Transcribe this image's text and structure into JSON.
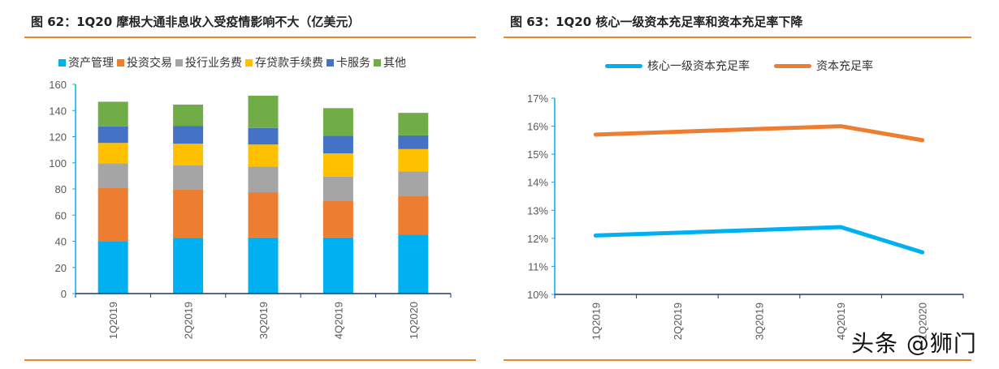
{
  "watermark": "头条 @狮门",
  "chart_data": [
    {
      "type": "bar",
      "stacked": true,
      "title": "图 62：1Q20 摩根大通非息收入受疫情影响不大（亿美元）",
      "categories": [
        "1Q2019",
        "2Q2019",
        "3Q2019",
        "4Q2019",
        "1Q2020"
      ],
      "ylim": [
        0,
        160
      ],
      "yticks": [
        0,
        20,
        40,
        60,
        80,
        100,
        120,
        140,
        160
      ],
      "grid": false,
      "legend": "top",
      "series": [
        {
          "name": "资产管理",
          "color": "#00b0f0",
          "values": [
            40.2,
            42.5,
            42.9,
            42.9,
            45.2
          ]
        },
        {
          "name": "投资交易",
          "color": "#ed7d31",
          "values": [
            40.8,
            37.3,
            34.6,
            27.8,
            29.6
          ]
        },
        {
          "name": "投行业务费",
          "color": "#a5a5a5",
          "values": [
            18.5,
            18.4,
            19.7,
            18.6,
            18.7
          ]
        },
        {
          "name": "存贷款手续费",
          "color": "#ffc000",
          "values": [
            15.7,
            16.4,
            16.8,
            17.9,
            17.0
          ]
        },
        {
          "name": "卡服务",
          "color": "#4472c4",
          "values": [
            12.7,
            13.7,
            12.6,
            13.6,
            10.5
          ]
        },
        {
          "name": "其他",
          "color": "#70ad47",
          "values": [
            18.8,
            16.2,
            24.7,
            21.0,
            17.2
          ]
        }
      ]
    },
    {
      "type": "line",
      "title": "图 63：1Q20 核心一级资本充足率和资本充足率下降",
      "categories": [
        "1Q2019",
        "2Q2019",
        "3Q2019",
        "4Q2019",
        "1Q2020"
      ],
      "ylim": [
        10,
        17
      ],
      "yticks": [
        "10%",
        "11%",
        "12%",
        "13%",
        "14%",
        "15%",
        "16%",
        "17%"
      ],
      "grid": false,
      "legend": "top",
      "series": [
        {
          "name": "核心一级资本充足率",
          "color": "#00b0f0",
          "values": [
            12.1,
            12.2,
            12.3,
            12.4,
            11.5
          ]
        },
        {
          "name": "资本充足率",
          "color": "#ed7d31",
          "values": [
            15.7,
            15.8,
            15.9,
            16.0,
            15.5
          ]
        }
      ]
    }
  ]
}
